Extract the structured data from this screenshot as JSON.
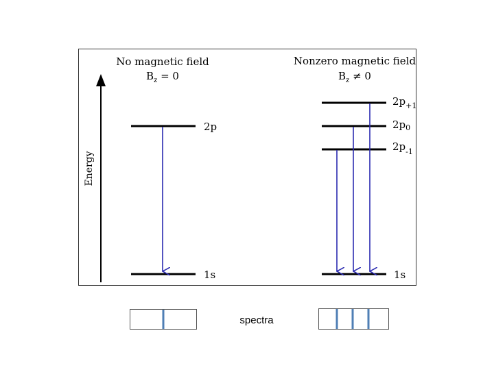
{
  "panel_left": {
    "title": "No magnetic field",
    "condition": "B",
    "condition_sub": "z",
    "condition_rel": " = 0",
    "upper_level": "2p",
    "lower_level": "1s"
  },
  "panel_right": {
    "title": "Nonzero magnetic field",
    "condition": "B",
    "condition_sub": "z",
    "condition_rel": " ≠ 0",
    "levels": [
      {
        "base": "2p",
        "sub": "+1"
      },
      {
        "base": "2p",
        "sub": "0"
      },
      {
        "base": "2p",
        "sub": "-1"
      }
    ],
    "lower_level": "1s"
  },
  "axis": {
    "label": "Energy"
  },
  "spectra": {
    "label": "spectra",
    "left_line_count": 1,
    "right_line_count": 3
  },
  "colors": {
    "transition_arrow": "#2a2ab0",
    "spectrum_line": "#4f7fb5",
    "level": "#000000",
    "frame": "#333333"
  }
}
